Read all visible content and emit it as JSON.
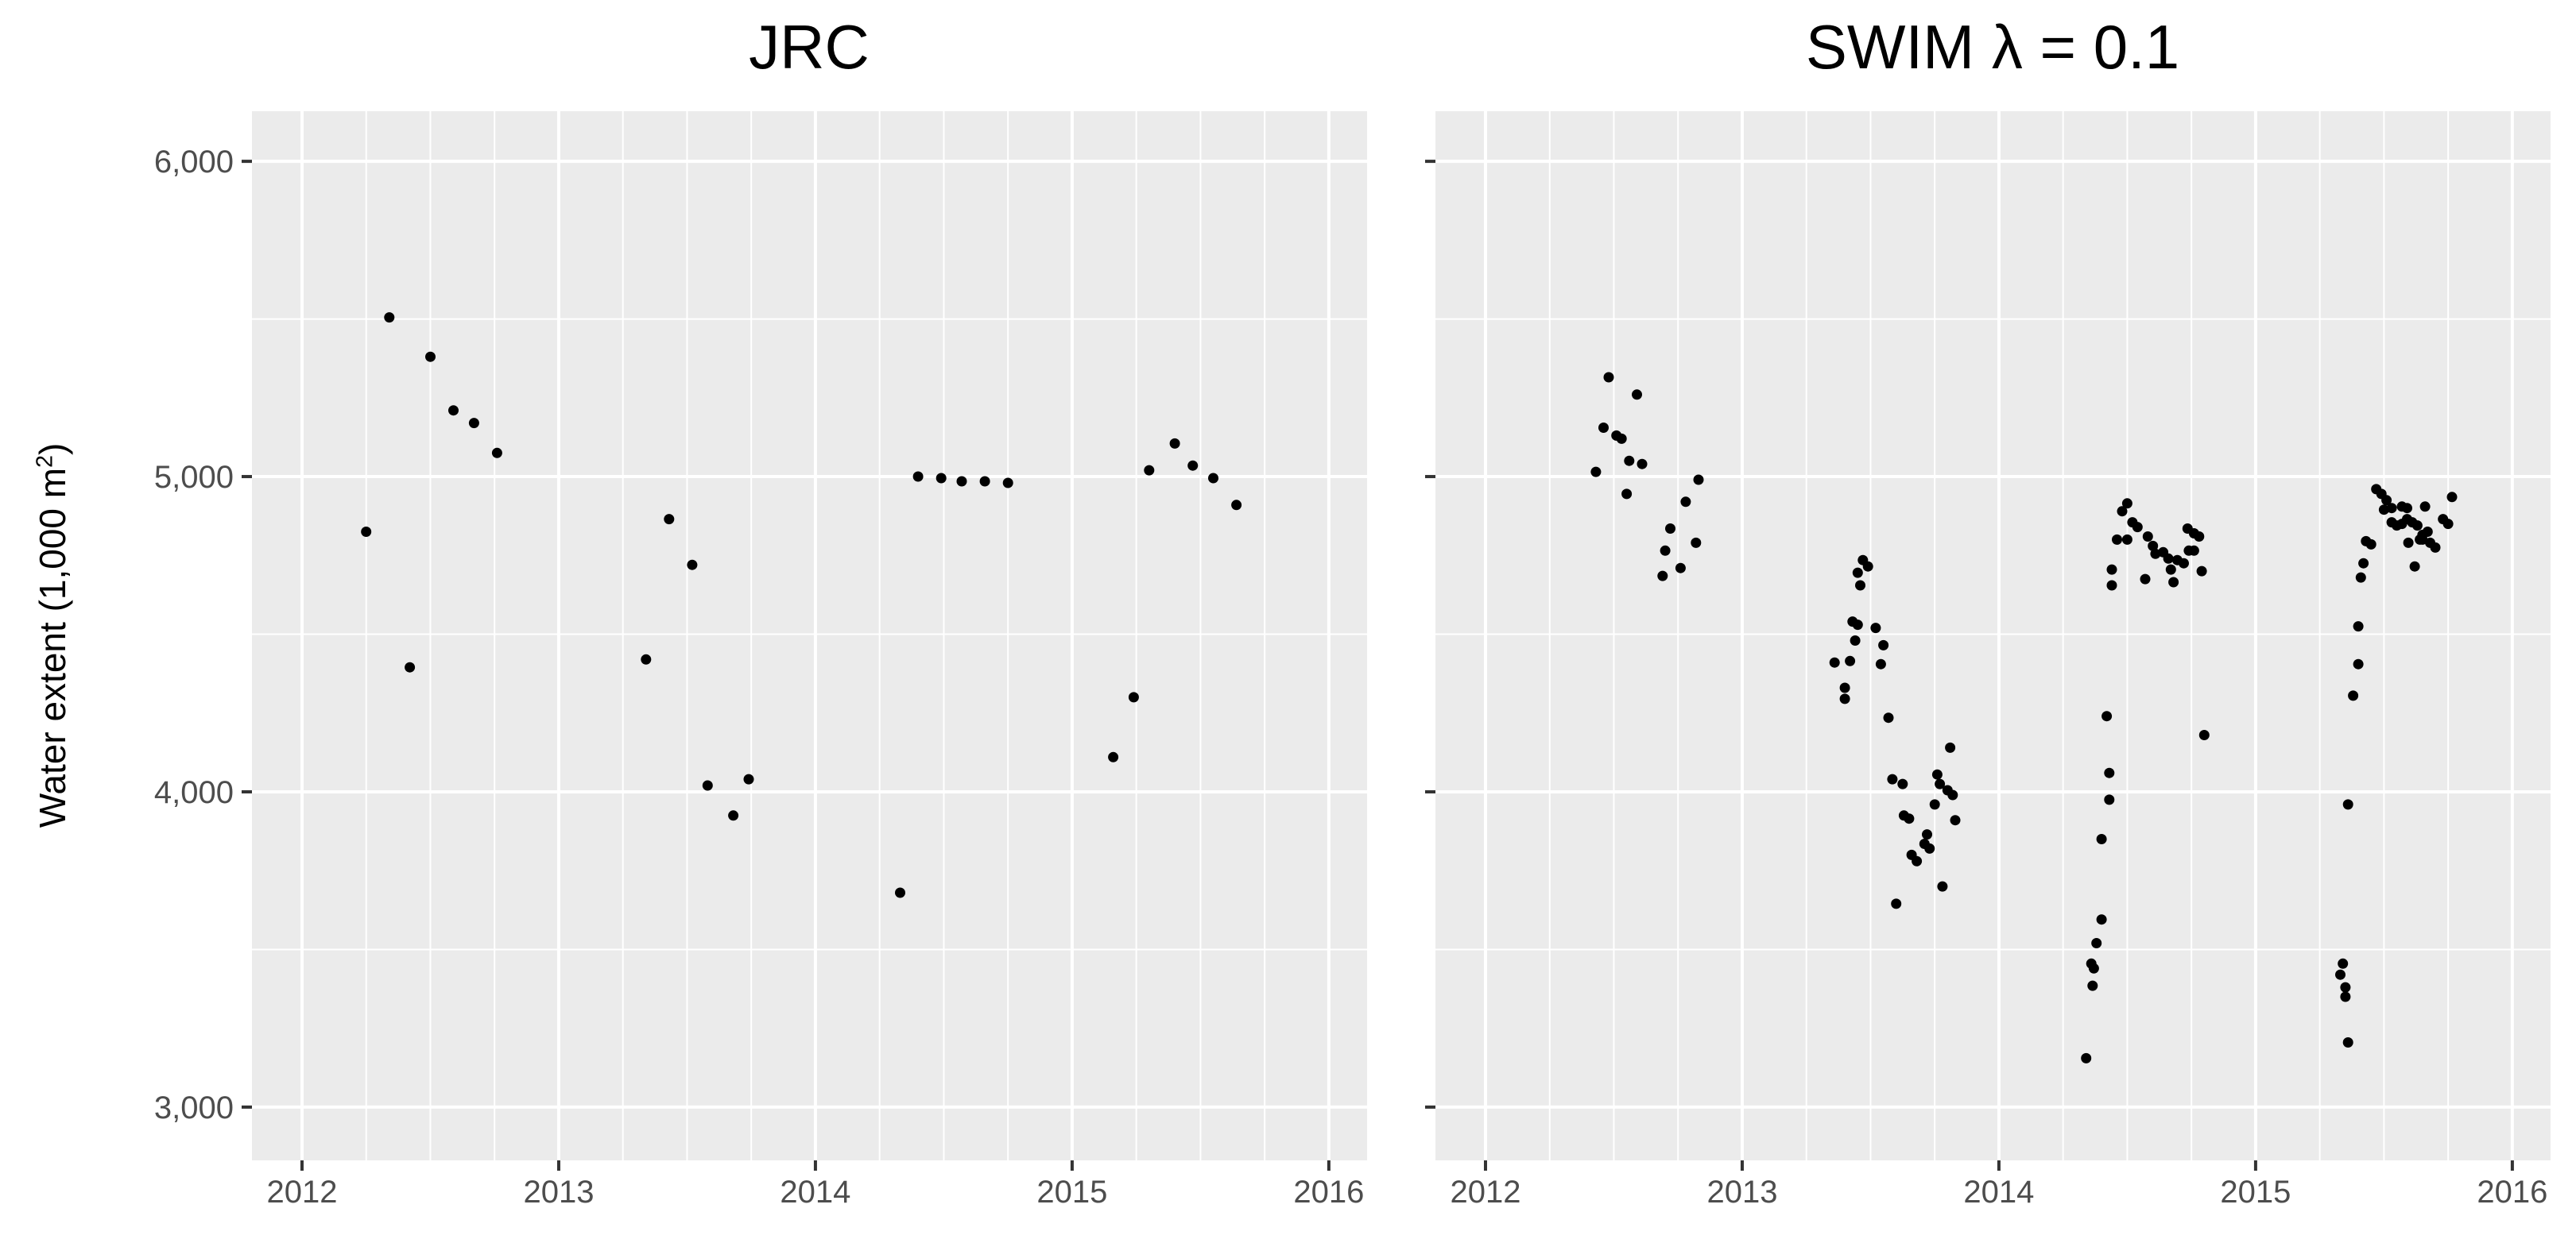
{
  "figure": {
    "background": "#FFFFFF",
    "panel_background": "#EBEBEB",
    "gridline_color": "#FFFFFF",
    "point_color": "#000000",
    "tick_mark_color": "#333333",
    "tick_label_color": "#4D4D4D",
    "title_color": "#000000"
  },
  "y_axis": {
    "title_prefix": "Water extent (1,000 m",
    "title_sup": "2",
    "title_suffix": ")",
    "tick_labels": [
      "6,000",
      "5,000",
      "4,000",
      "3,000"
    ],
    "tick_values": [
      6000,
      5000,
      4000,
      3000
    ],
    "minor_values": [
      5500,
      4500,
      3500
    ]
  },
  "x_axis": {
    "tick_labels": [
      "2012",
      "2013",
      "2014",
      "2015",
      "2016"
    ],
    "tick_values": [
      2012,
      2013,
      2014,
      2015,
      2016
    ],
    "minor_step": 0.25
  },
  "chart_data": [
    {
      "type": "scatter",
      "title": "JRC",
      "xlabel": "",
      "ylabel": "Water extent (1,000 m2)",
      "xlim": [
        2011.805,
        2016.149
      ],
      "ylim": [
        2831,
        6159
      ],
      "grid": true,
      "legend": "none",
      "points": [
        [
          2012.25,
          4825
        ],
        [
          2012.34,
          5505
        ],
        [
          2012.42,
          4395
        ],
        [
          2012.5,
          5380
        ],
        [
          2012.59,
          5210
        ],
        [
          2012.67,
          5170
        ],
        [
          2012.76,
          5075
        ],
        [
          2013.34,
          4420
        ],
        [
          2013.43,
          4865
        ],
        [
          2013.52,
          4720
        ],
        [
          2013.58,
          4020
        ],
        [
          2013.68,
          3925
        ],
        [
          2013.74,
          4040
        ],
        [
          2014.33,
          3680
        ],
        [
          2014.4,
          5000
        ],
        [
          2014.49,
          4995
        ],
        [
          2014.57,
          4985
        ],
        [
          2014.66,
          4985
        ],
        [
          2014.75,
          4980
        ],
        [
          2015.16,
          4110
        ],
        [
          2015.24,
          4300
        ],
        [
          2015.3,
          5020
        ],
        [
          2015.4,
          5105
        ],
        [
          2015.47,
          5035
        ],
        [
          2015.55,
          4995
        ],
        [
          2015.64,
          4910
        ]
      ]
    },
    {
      "type": "scatter",
      "title": "SWIM  λ = 0.1",
      "xlabel": "",
      "ylabel": "Water extent (1,000 m2)",
      "xlim": [
        2011.805,
        2016.149
      ],
      "ylim": [
        2831,
        6159
      ],
      "grid": true,
      "legend": "none",
      "points": [
        [
          2012.43,
          5015
        ],
        [
          2012.46,
          5155
        ],
        [
          2012.48,
          5315
        ],
        [
          2012.51,
          5130
        ],
        [
          2012.53,
          5120
        ],
        [
          2012.55,
          4945
        ],
        [
          2012.56,
          5050
        ],
        [
          2012.59,
          5260
        ],
        [
          2012.61,
          5040
        ],
        [
          2012.69,
          4685
        ],
        [
          2012.7,
          4765
        ],
        [
          2012.72,
          4835
        ],
        [
          2012.76,
          4710
        ],
        [
          2012.78,
          4920
        ],
        [
          2012.82,
          4790
        ],
        [
          2012.83,
          4990
        ],
        [
          2013.36,
          4410
        ],
        [
          2013.4,
          4330
        ],
        [
          2013.4,
          4295
        ],
        [
          2013.42,
          4415
        ],
        [
          2013.43,
          4540
        ],
        [
          2013.44,
          4480
        ],
        [
          2013.45,
          4530
        ],
        [
          2013.45,
          4695
        ],
        [
          2013.46,
          4655
        ],
        [
          2013.47,
          4735
        ],
        [
          2013.49,
          4715
        ],
        [
          2013.52,
          4520
        ],
        [
          2013.54,
          4405
        ],
        [
          2013.55,
          4465
        ],
        [
          2013.57,
          4235
        ],
        [
          2013.585,
          4040
        ],
        [
          2013.6,
          3645
        ],
        [
          2013.625,
          4025
        ],
        [
          2013.63,
          3925
        ],
        [
          2013.65,
          3915
        ],
        [
          2013.66,
          3800
        ],
        [
          2013.68,
          3780
        ],
        [
          2013.71,
          3835
        ],
        [
          2013.72,
          3865
        ],
        [
          2013.73,
          3820
        ],
        [
          2013.75,
          3960
        ],
        [
          2013.76,
          4055
        ],
        [
          2013.77,
          4025
        ],
        [
          2013.78,
          3700
        ],
        [
          2013.8,
          4005
        ],
        [
          2013.81,
          4140
        ],
        [
          2013.82,
          3990
        ],
        [
          2013.83,
          3910
        ],
        [
          2014.34,
          3155
        ],
        [
          2014.36,
          3455
        ],
        [
          2014.37,
          3440
        ],
        [
          2014.365,
          3385
        ],
        [
          2014.38,
          3520
        ],
        [
          2014.4,
          3595
        ],
        [
          2014.4,
          3850
        ],
        [
          2014.42,
          4240
        ],
        [
          2014.43,
          3975
        ],
        [
          2014.43,
          4060
        ],
        [
          2014.44,
          4655
        ],
        [
          2014.44,
          4705
        ],
        [
          2014.46,
          4800
        ],
        [
          2014.48,
          4890
        ],
        [
          2014.5,
          4915
        ],
        [
          2014.5,
          4800
        ],
        [
          2014.52,
          4855
        ],
        [
          2014.54,
          4840
        ],
        [
          2014.57,
          4675
        ],
        [
          2014.58,
          4810
        ],
        [
          2014.6,
          4780
        ],
        [
          2014.61,
          4755
        ],
        [
          2014.64,
          4760
        ],
        [
          2014.66,
          4740
        ],
        [
          2014.67,
          4705
        ],
        [
          2014.68,
          4665
        ],
        [
          2014.695,
          4735
        ],
        [
          2014.72,
          4725
        ],
        [
          2014.735,
          4835
        ],
        [
          2014.74,
          4765
        ],
        [
          2014.76,
          4820
        ],
        [
          2014.76,
          4765
        ],
        [
          2014.78,
          4810
        ],
        [
          2014.79,
          4700
        ],
        [
          2014.8,
          4180
        ],
        [
          2015.33,
          3420
        ],
        [
          2015.34,
          3455
        ],
        [
          2015.35,
          3380
        ],
        [
          2015.35,
          3350
        ],
        [
          2015.36,
          3205
        ],
        [
          2015.36,
          3960
        ],
        [
          2015.38,
          4305
        ],
        [
          2015.4,
          4405
        ],
        [
          2015.4,
          4525
        ],
        [
          2015.41,
          4680
        ],
        [
          2015.42,
          4725
        ],
        [
          2015.43,
          4795
        ],
        [
          2015.45,
          4785
        ],
        [
          2015.47,
          4960
        ],
        [
          2015.49,
          4945
        ],
        [
          2015.5,
          4895
        ],
        [
          2015.51,
          4925
        ],
        [
          2015.53,
          4900
        ],
        [
          2015.53,
          4855
        ],
        [
          2015.55,
          4845
        ],
        [
          2015.57,
          4905
        ],
        [
          2015.57,
          4850
        ],
        [
          2015.59,
          4900
        ],
        [
          2015.59,
          4865
        ],
        [
          2015.595,
          4790
        ],
        [
          2015.61,
          4855
        ],
        [
          2015.62,
          4715
        ],
        [
          2015.63,
          4845
        ],
        [
          2015.64,
          4800
        ],
        [
          2015.65,
          4815
        ],
        [
          2015.65,
          4800
        ],
        [
          2015.66,
          4905
        ],
        [
          2015.67,
          4825
        ],
        [
          2015.68,
          4790
        ],
        [
          2015.7,
          4775
        ],
        [
          2015.73,
          4865
        ],
        [
          2015.75,
          4850
        ],
        [
          2015.765,
          4935
        ]
      ]
    }
  ]
}
